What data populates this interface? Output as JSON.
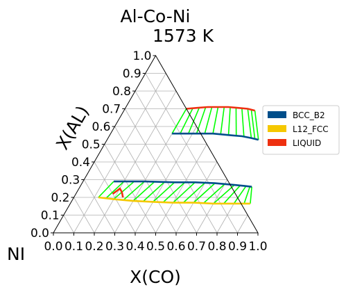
{
  "chart_data": {
    "type": "ternary-phase-diagram",
    "title": "Al-Co-Ni",
    "subtitle": "1573  K",
    "left_axis_label": "X(AL)",
    "bottom_axis_label": "X(CO)",
    "corner_label": "NI",
    "axis_range": [
      0,
      1
    ],
    "ticks": [
      "0.0",
      "0.1",
      "0.2",
      "0.3",
      "0.4",
      "0.5",
      "0.6",
      "0.7",
      "0.8",
      "0.9",
      "1.0"
    ],
    "grid": true,
    "legend_position": "right",
    "legend": [
      {
        "name": "BCC_B2",
        "color": "#004e8a"
      },
      {
        "name": "L12_FCC",
        "color": "#f5c800"
      },
      {
        "name": "LIQUID",
        "color": "#ee3010"
      }
    ],
    "tie_line_color": "#00ff00",
    "phase_boundaries": [
      {
        "phase": "LIQUID",
        "points": [
          [
            0.3,
            0.7
          ],
          [
            0.35,
            0.705
          ],
          [
            0.4,
            0.71
          ],
          [
            0.45,
            0.71
          ],
          [
            0.5,
            0.71
          ],
          [
            0.55,
            0.705
          ],
          [
            0.6,
            0.7
          ],
          [
            0.64,
            0.69
          ]
        ]
      },
      {
        "phase": "BCC_B2",
        "points": [
          [
            0.3,
            0.56
          ],
          [
            0.4,
            0.56
          ],
          [
            0.5,
            0.56
          ],
          [
            0.6,
            0.55
          ],
          [
            0.65,
            0.545
          ],
          [
            0.7,
            0.535
          ],
          [
            0.74,
            0.525
          ]
        ]
      },
      {
        "phase": "BCC_B2",
        "points": [
          [
            0.15,
            0.29
          ],
          [
            0.3,
            0.29
          ],
          [
            0.45,
            0.285
          ],
          [
            0.55,
            0.285
          ],
          [
            0.65,
            0.28
          ],
          [
            0.75,
            0.27
          ],
          [
            0.8,
            0.265
          ],
          [
            0.84,
            0.26
          ]
        ]
      },
      {
        "phase": "L12_FCC",
        "points": [
          [
            0.12,
            0.2
          ],
          [
            0.2,
            0.19
          ],
          [
            0.3,
            0.18
          ],
          [
            0.4,
            0.175
          ],
          [
            0.5,
            0.17
          ],
          [
            0.6,
            0.17
          ],
          [
            0.7,
            0.165
          ],
          [
            0.8,
            0.165
          ],
          [
            0.88,
            0.165
          ]
        ]
      },
      {
        "phase": "LIQUID",
        "points": [
          [
            0.18,
            0.22
          ],
          [
            0.2,
            0.25
          ],
          [
            0.22,
            0.23
          ],
          [
            0.24,
            0.2
          ]
        ]
      }
    ],
    "tie_lines": [
      {
        "from": [
          0.3,
          0.7
        ],
        "to": [
          0.3,
          0.56
        ]
      },
      {
        "from": [
          0.33,
          0.703
        ],
        "to": [
          0.34,
          0.56
        ]
      },
      {
        "from": [
          0.36,
          0.706
        ],
        "to": [
          0.38,
          0.56
        ]
      },
      {
        "from": [
          0.39,
          0.709
        ],
        "to": [
          0.42,
          0.56
        ]
      },
      {
        "from": [
          0.42,
          0.71
        ],
        "to": [
          0.46,
          0.56
        ]
      },
      {
        "from": [
          0.45,
          0.71
        ],
        "to": [
          0.5,
          0.56
        ]
      },
      {
        "from": [
          0.48,
          0.71
        ],
        "to": [
          0.54,
          0.555
        ]
      },
      {
        "from": [
          0.51,
          0.709
        ],
        "to": [
          0.58,
          0.552
        ]
      },
      {
        "from": [
          0.54,
          0.706
        ],
        "to": [
          0.62,
          0.548
        ]
      },
      {
        "from": [
          0.57,
          0.703
        ],
        "to": [
          0.66,
          0.543
        ]
      },
      {
        "from": [
          0.6,
          0.7
        ],
        "to": [
          0.7,
          0.535
        ]
      },
      {
        "from": [
          0.62,
          0.695
        ],
        "to": [
          0.72,
          0.53
        ]
      },
      {
        "from": [
          0.64,
          0.69
        ],
        "to": [
          0.74,
          0.525
        ]
      },
      {
        "from": [
          0.12,
          0.2
        ],
        "to": [
          0.15,
          0.29
        ]
      },
      {
        "from": [
          0.16,
          0.196
        ],
        "to": [
          0.2,
          0.29
        ]
      },
      {
        "from": [
          0.2,
          0.19
        ],
        "to": [
          0.25,
          0.29
        ]
      },
      {
        "from": [
          0.25,
          0.185
        ],
        "to": [
          0.3,
          0.29
        ]
      },
      {
        "from": [
          0.3,
          0.18
        ],
        "to": [
          0.35,
          0.288
        ]
      },
      {
        "from": [
          0.35,
          0.177
        ],
        "to": [
          0.4,
          0.287
        ]
      },
      {
        "from": [
          0.4,
          0.175
        ],
        "to": [
          0.45,
          0.285
        ]
      },
      {
        "from": [
          0.45,
          0.172
        ],
        "to": [
          0.5,
          0.285
        ]
      },
      {
        "from": [
          0.5,
          0.17
        ],
        "to": [
          0.55,
          0.285
        ]
      },
      {
        "from": [
          0.55,
          0.17
        ],
        "to": [
          0.6,
          0.283
        ]
      },
      {
        "from": [
          0.6,
          0.17
        ],
        "to": [
          0.65,
          0.28
        ]
      },
      {
        "from": [
          0.65,
          0.167
        ],
        "to": [
          0.7,
          0.275
        ]
      },
      {
        "from": [
          0.7,
          0.165
        ],
        "to": [
          0.75,
          0.27
        ]
      },
      {
        "from": [
          0.75,
          0.165
        ],
        "to": [
          0.78,
          0.268
        ]
      },
      {
        "from": [
          0.8,
          0.165
        ],
        "to": [
          0.81,
          0.264
        ]
      },
      {
        "from": [
          0.85,
          0.165
        ],
        "to": [
          0.83,
          0.262
        ]
      },
      {
        "from": [
          0.88,
          0.165
        ],
        "to": [
          0.84,
          0.26
        ]
      }
    ]
  }
}
